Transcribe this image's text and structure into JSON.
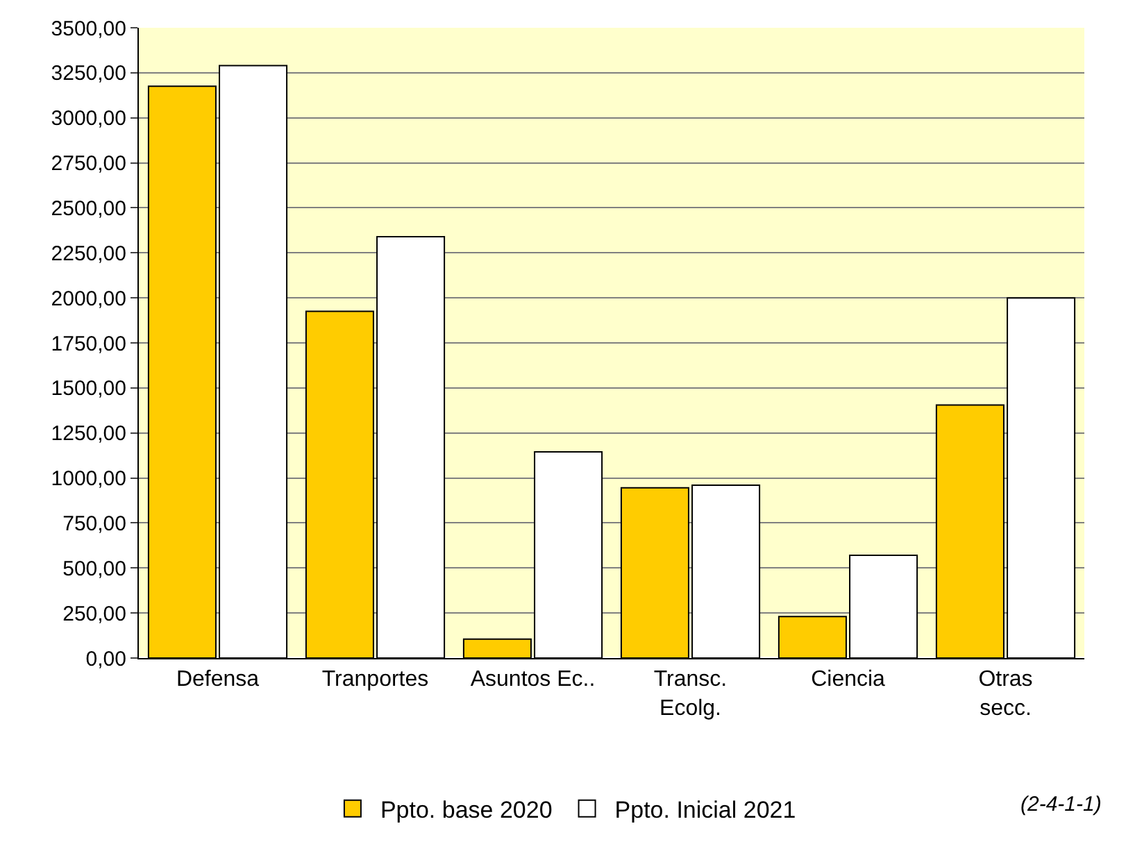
{
  "chart_data": {
    "type": "bar",
    "categories": [
      "Defensa",
      "Tranportes",
      "Asuntos Ec..",
      "Transc.\nEcolg.",
      "Ciencia",
      "Otras\nsecc."
    ],
    "series": [
      {
        "name": "Ppto. base 2020",
        "color": "#ffcc00",
        "values": [
          3175,
          1925,
          105,
          945,
          230,
          1405
        ]
      },
      {
        "name": "Ppto. Inicial 2021",
        "color": "#ffffff",
        "values": [
          3290,
          2340,
          1145,
          960,
          570,
          2000
        ]
      }
    ],
    "ylim": [
      0,
      3500
    ],
    "yticks": [
      {
        "value": 0,
        "label": "0,00"
      },
      {
        "value": 250,
        "label": "250,00"
      },
      {
        "value": 500,
        "label": "500,00"
      },
      {
        "value": 750,
        "label": "750,00"
      },
      {
        "value": 1000,
        "label": "1000,00"
      },
      {
        "value": 1250,
        "label": "1250,00"
      },
      {
        "value": 1500,
        "label": "1500,00"
      },
      {
        "value": 1750,
        "label": "1750,00"
      },
      {
        "value": 2000,
        "label": "2000,00"
      },
      {
        "value": 2250,
        "label": "2250,00"
      },
      {
        "value": 2500,
        "label": "2500,00"
      },
      {
        "value": 2750,
        "label": "2750,00"
      },
      {
        "value": 3000,
        "label": "3000,00"
      },
      {
        "value": 3250,
        "label": "3250,00"
      },
      {
        "value": 3500,
        "label": "3500,00"
      }
    ],
    "grid": "y",
    "legend": "bottom",
    "annotations": [
      "(2-4-1-1)"
    ]
  }
}
